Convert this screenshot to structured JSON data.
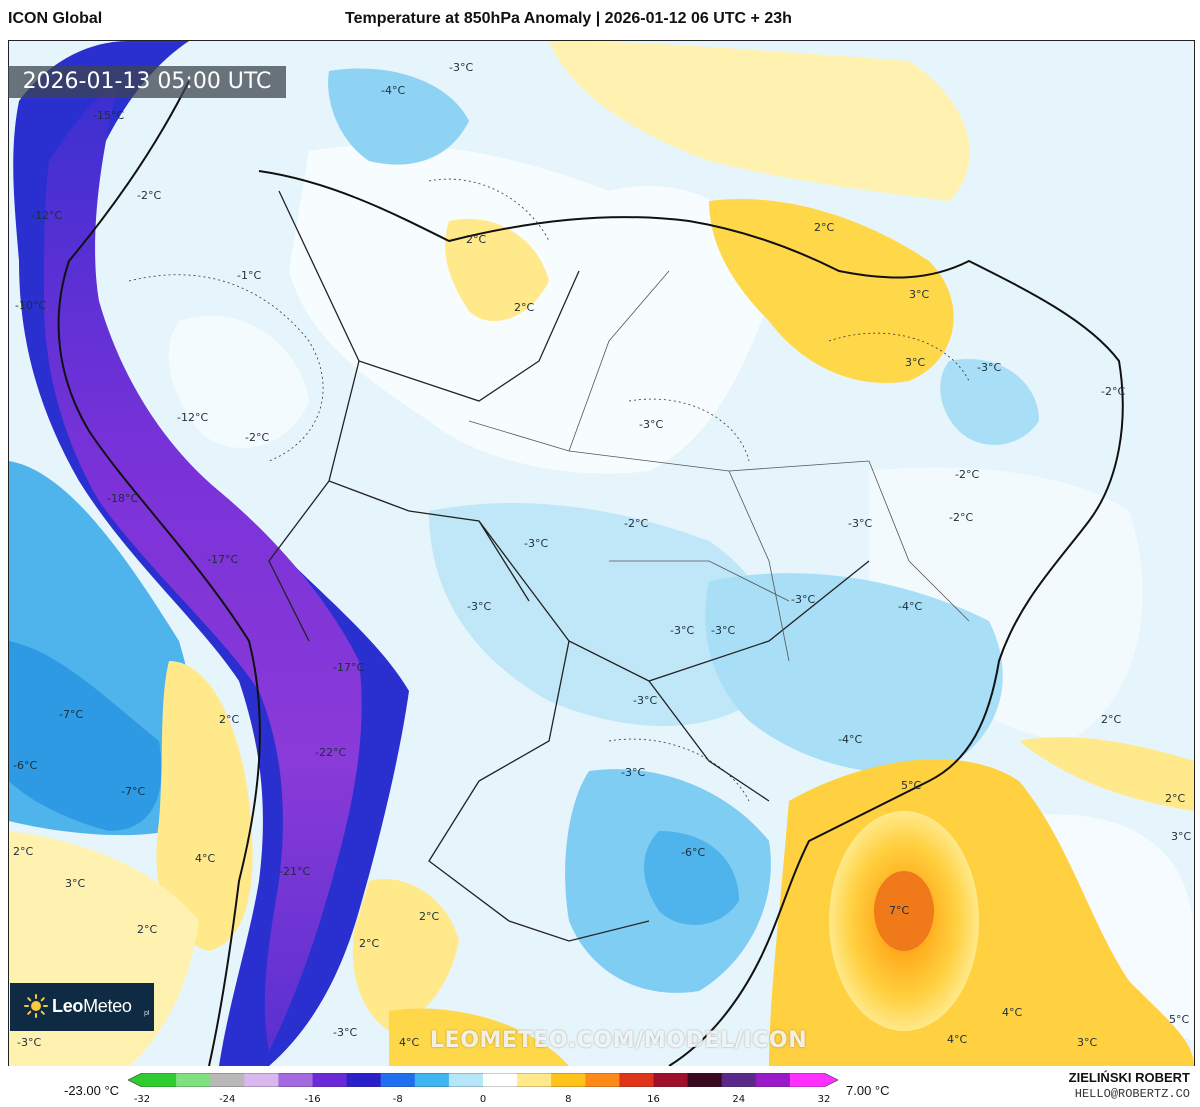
{
  "header": {
    "model": "ICON Global",
    "title": "Temperature at 850hPa Anomaly | 2026-01-12 06 UTC + 23h"
  },
  "map": {
    "valid_time": "2026-01-13 05:00 UTC",
    "watermark": "LEOMETEO.COM/MODEL/ICON",
    "logo_text_bold": "Leo",
    "logo_text_light": "Meteo",
    "logo_suffix": "pl",
    "labels": [
      {
        "text": "-3°C"
      },
      {
        "text": "-4°C"
      },
      {
        "text": "-15°C"
      },
      {
        "text": "-2°C"
      },
      {
        "text": "-12°C"
      },
      {
        "text": "-1°C"
      },
      {
        "text": "-10°C"
      },
      {
        "text": "2°C"
      },
      {
        "text": "2°C"
      },
      {
        "text": "2°C"
      },
      {
        "text": "3°C"
      },
      {
        "text": "3°C"
      },
      {
        "text": "-3°C"
      },
      {
        "text": "-2°C"
      },
      {
        "text": "-12°C"
      },
      {
        "text": "-2°C"
      },
      {
        "text": "-3°C"
      },
      {
        "text": "-18°C"
      },
      {
        "text": "-2°C"
      },
      {
        "text": "-2°C"
      },
      {
        "text": "-17°C"
      },
      {
        "text": "-3°C"
      },
      {
        "text": "-2°C"
      },
      {
        "text": "-3°C"
      },
      {
        "text": "-3°C"
      },
      {
        "text": "-4°C"
      },
      {
        "text": "-3°C"
      },
      {
        "text": "-3°C"
      },
      {
        "text": "-3°C"
      },
      {
        "text": "-17°C"
      },
      {
        "text": "-7°C"
      },
      {
        "text": "2°C"
      },
      {
        "text": "-3°C"
      },
      {
        "text": "2°C"
      },
      {
        "text": "-4°C"
      },
      {
        "text": "-6°C"
      },
      {
        "text": "-22°C"
      },
      {
        "text": "-7°C"
      },
      {
        "text": "-3°C"
      },
      {
        "text": "5°C"
      },
      {
        "text": "2°C"
      },
      {
        "text": "3°C"
      },
      {
        "text": "4°C"
      },
      {
        "text": "-6°C"
      },
      {
        "text": "2°C"
      },
      {
        "text": "3°C"
      },
      {
        "text": "-21°C"
      },
      {
        "text": "2°C"
      },
      {
        "text": "7°C"
      },
      {
        "text": "2°C"
      },
      {
        "text": "2°C"
      },
      {
        "text": "-3°C"
      },
      {
        "text": "4°C"
      },
      {
        "text": "4°C"
      },
      {
        "text": "4°C"
      },
      {
        "text": "3°C"
      },
      {
        "text": "5°C"
      },
      {
        "text": "-3°C"
      }
    ]
  },
  "colorbar": {
    "min_label": "-23.00 °C",
    "max_label": "7.00 °C",
    "ticks": [
      "-32",
      "-24",
      "-16",
      "-8",
      "0",
      "8",
      "16",
      "24",
      "32"
    ],
    "range": [
      -32,
      32
    ],
    "colors": [
      "#2ecc2e",
      "#7ee07e",
      "#b8b8b8",
      "#d9b8f0",
      "#a46be0",
      "#6a28d8",
      "#2a1fc9",
      "#1f6ff0",
      "#3fb6f0",
      "#b6e6f8",
      "#ffffff",
      "#ffe98a",
      "#ffc21a",
      "#ff8a1a",
      "#e0341a",
      "#a0102a",
      "#3a0820",
      "#5a2a8a",
      "#9a1ac8",
      "#ff30ff"
    ]
  },
  "footer": {
    "author": "ZIELIŃSKI ROBERT",
    "email": "HELLO@ROBERTZ.CO"
  }
}
